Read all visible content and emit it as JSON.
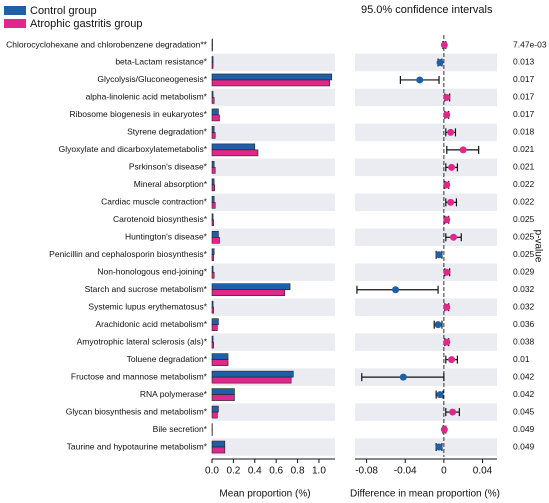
{
  "chart_data": {
    "type": "extended_error_bar",
    "title": "95.0% confidence intervals",
    "categories": [
      "Chlorocyclohexane and chlorobenzene degradation**",
      "beta-Lactam resistance*",
      "Glycolysis/Gluconeogenesis*",
      "alpha-linolenic acid metabolism*",
      "Ribosome biogenesis in eukaryotes*",
      "Styrene degradation*",
      "Glyoxylate and dicarboxylatemetabolis*",
      "Psrkinson's disease*",
      "Mineral absorption*",
      "Cardiac muscle contraction*",
      "Carotenoid biosynthesis*",
      "Huntington's disease*",
      "Penicillin and cephalosporin biosynthesis*",
      "Non-honologous end-joining*",
      "Starch and sucrose metabolism*",
      "Systemic lupus erythematosus*",
      "Arachidonic acid metabolism*",
      "Amyotrophic lateral sclerosis (als)*",
      "Toluene degradation*",
      "Fructose and mannose metabolism*",
      "RNA polymerase*",
      "Glycan biosynthesis and metabolism*",
      "Bile secretion*",
      "Taurine and hypotaurine metabolism*"
    ],
    "series": [
      {
        "name": "Control group",
        "color": "#1f5fa8",
        "values": [
          0.005,
          0.01,
          1.12,
          0.01,
          0.06,
          0.02,
          0.4,
          0.02,
          0.02,
          0.02,
          0.01,
          0.06,
          0.02,
          0.01,
          0.73,
          0.01,
          0.06,
          0.01,
          0.15,
          0.76,
          0.21,
          0.06,
          0.003,
          0.12
        ]
      },
      {
        "name": "Atrophic gastritis group",
        "color": "#e0288c",
        "values": [
          0.005,
          0.01,
          1.1,
          0.02,
          0.07,
          0.03,
          0.43,
          0.03,
          0.025,
          0.03,
          0.015,
          0.07,
          0.015,
          0.02,
          0.68,
          0.015,
          0.05,
          0.015,
          0.15,
          0.74,
          0.21,
          0.05,
          0.003,
          0.12
        ]
      }
    ],
    "xlabel": "Mean proportion (%)",
    "xlim": [
      0,
      1.15
    ],
    "xticks": [
      {
        "value": 0,
        "label": "0.0"
      },
      0.2,
      0.4,
      0.6,
      0.8,
      {
        "value": 1,
        "label": "1.0"
      }
    ],
    "difference": {
      "xlabel": "Difference in mean proportion (%)",
      "values": [
        0.0005,
        -0.004,
        -0.025,
        0.003,
        0.003,
        0.007,
        0.02,
        0.008,
        0.003,
        0.007,
        0.003,
        0.01,
        -0.005,
        0.003,
        -0.05,
        0.003,
        -0.006,
        0.003,
        0.008,
        -0.042,
        -0.004,
        0.009,
        0.0005,
        -0.005
      ],
      "ci_low": [
        -0.001,
        -0.006,
        -0.045,
        0.001,
        0.001,
        0.002,
        0.003,
        0.002,
        0.001,
        0.002,
        0.001,
        0.002,
        -0.008,
        0.001,
        -0.09,
        0.001,
        -0.01,
        0.001,
        0.002,
        -0.085,
        -0.008,
        0.002,
        -0.001,
        -0.008
      ],
      "ci_high": [
        0.002,
        -0.002,
        -0.005,
        0.006,
        0.005,
        0.012,
        0.036,
        0.014,
        0.005,
        0.013,
        0.005,
        0.018,
        -0.002,
        0.006,
        -0.006,
        0.005,
        -0.002,
        0.005,
        0.014,
        0,
        -0.001,
        0.016,
        0.002,
        -0.002
      ],
      "xlim": [
        -0.092,
        0.055
      ],
      "xticks": [
        -0.08,
        -0.04,
        0,
        0.04
      ]
    },
    "p_label": "p-value",
    "p_values": [
      0.00747,
      0.013,
      0.017,
      0.017,
      0.017,
      0.018,
      0.021,
      0.021,
      0.022,
      0.022,
      0.025,
      0.025,
      0.025,
      0.029,
      0.032,
      0.032,
      0.036,
      0.038,
      0.01,
      0.042,
      0.042,
      0.045,
      0.049,
      0.049
    ],
    "p_value_labels": [
      "7.47e-03",
      "0.013",
      "0.017",
      "0.017",
      "0.017",
      "0.018",
      "0.021",
      "0.021",
      "0.022",
      "0.022",
      "0.025",
      "0.025",
      "0.025",
      "0.029",
      "0.032",
      "0.032",
      "0.036",
      "0.038",
      "0.01",
      "0.042",
      "0.042",
      "0.045",
      "0.049",
      "0.049"
    ]
  }
}
